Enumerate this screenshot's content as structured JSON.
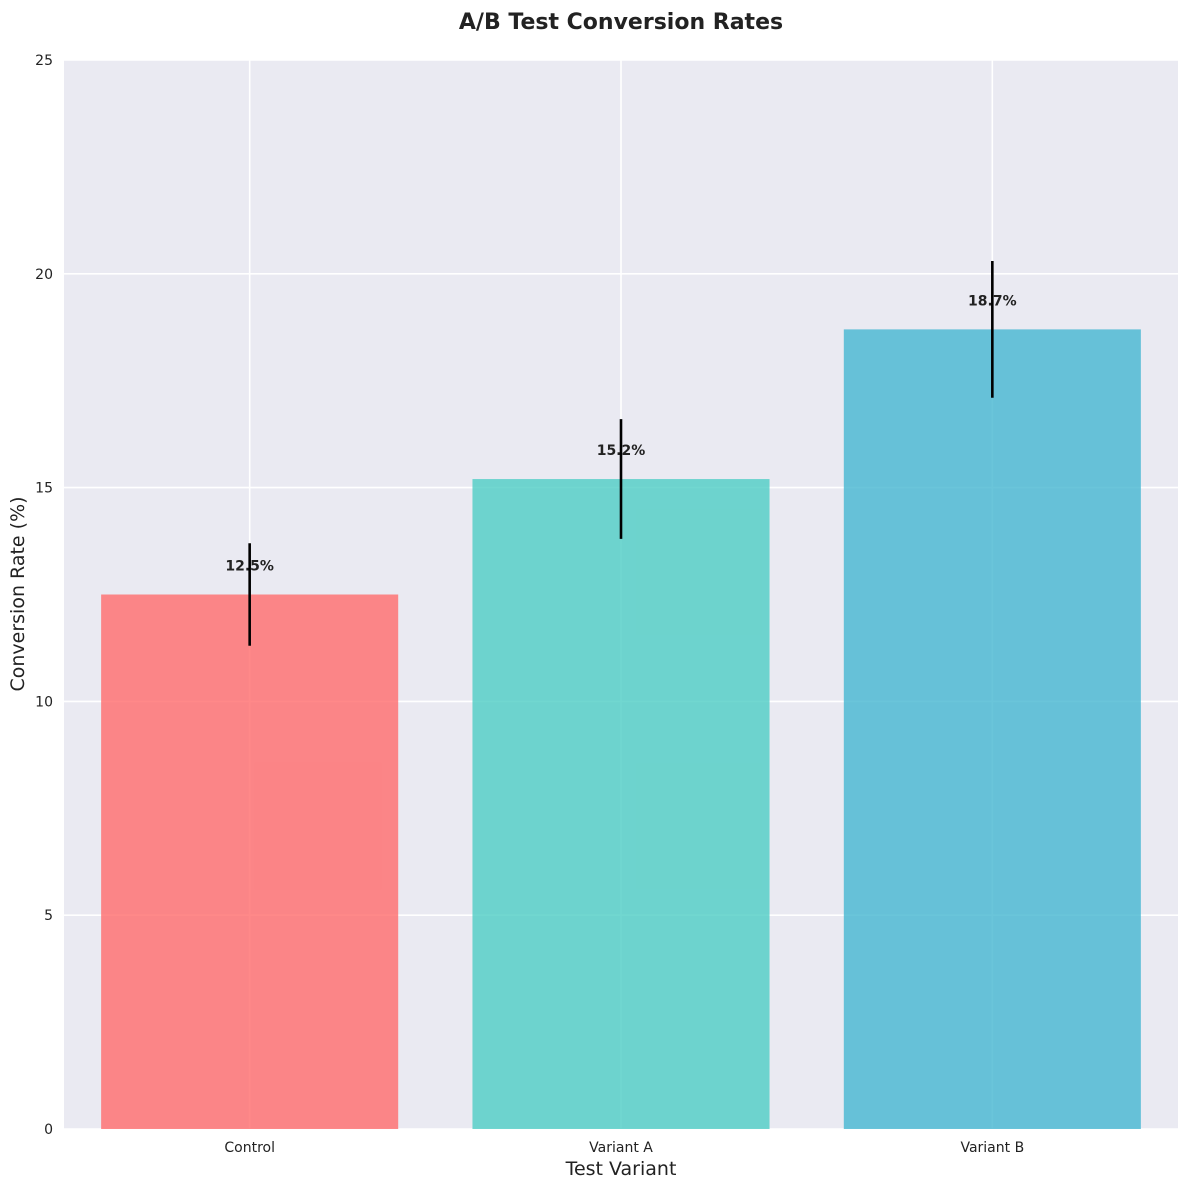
{
  "chart_data": {
    "type": "bar",
    "title": "A/B Test Conversion Rates",
    "xlabel": "Test Variant",
    "ylabel": "Conversion Rate (%)",
    "categories": [
      "Control",
      "Variant A",
      "Variant B"
    ],
    "values": [
      12.5,
      15.2,
      18.7
    ],
    "errors": [
      1.2,
      1.4,
      1.6
    ],
    "value_labels": [
      "12.5%",
      "15.2%",
      "18.7%"
    ],
    "colors": [
      "#FF6B6B",
      "#4ECDC4",
      "#45B7D1"
    ],
    "ylim": [
      0,
      25
    ],
    "yticks": [
      0,
      5,
      10,
      15,
      20,
      25
    ],
    "grid": true,
    "background": "#EAEAF2"
  }
}
